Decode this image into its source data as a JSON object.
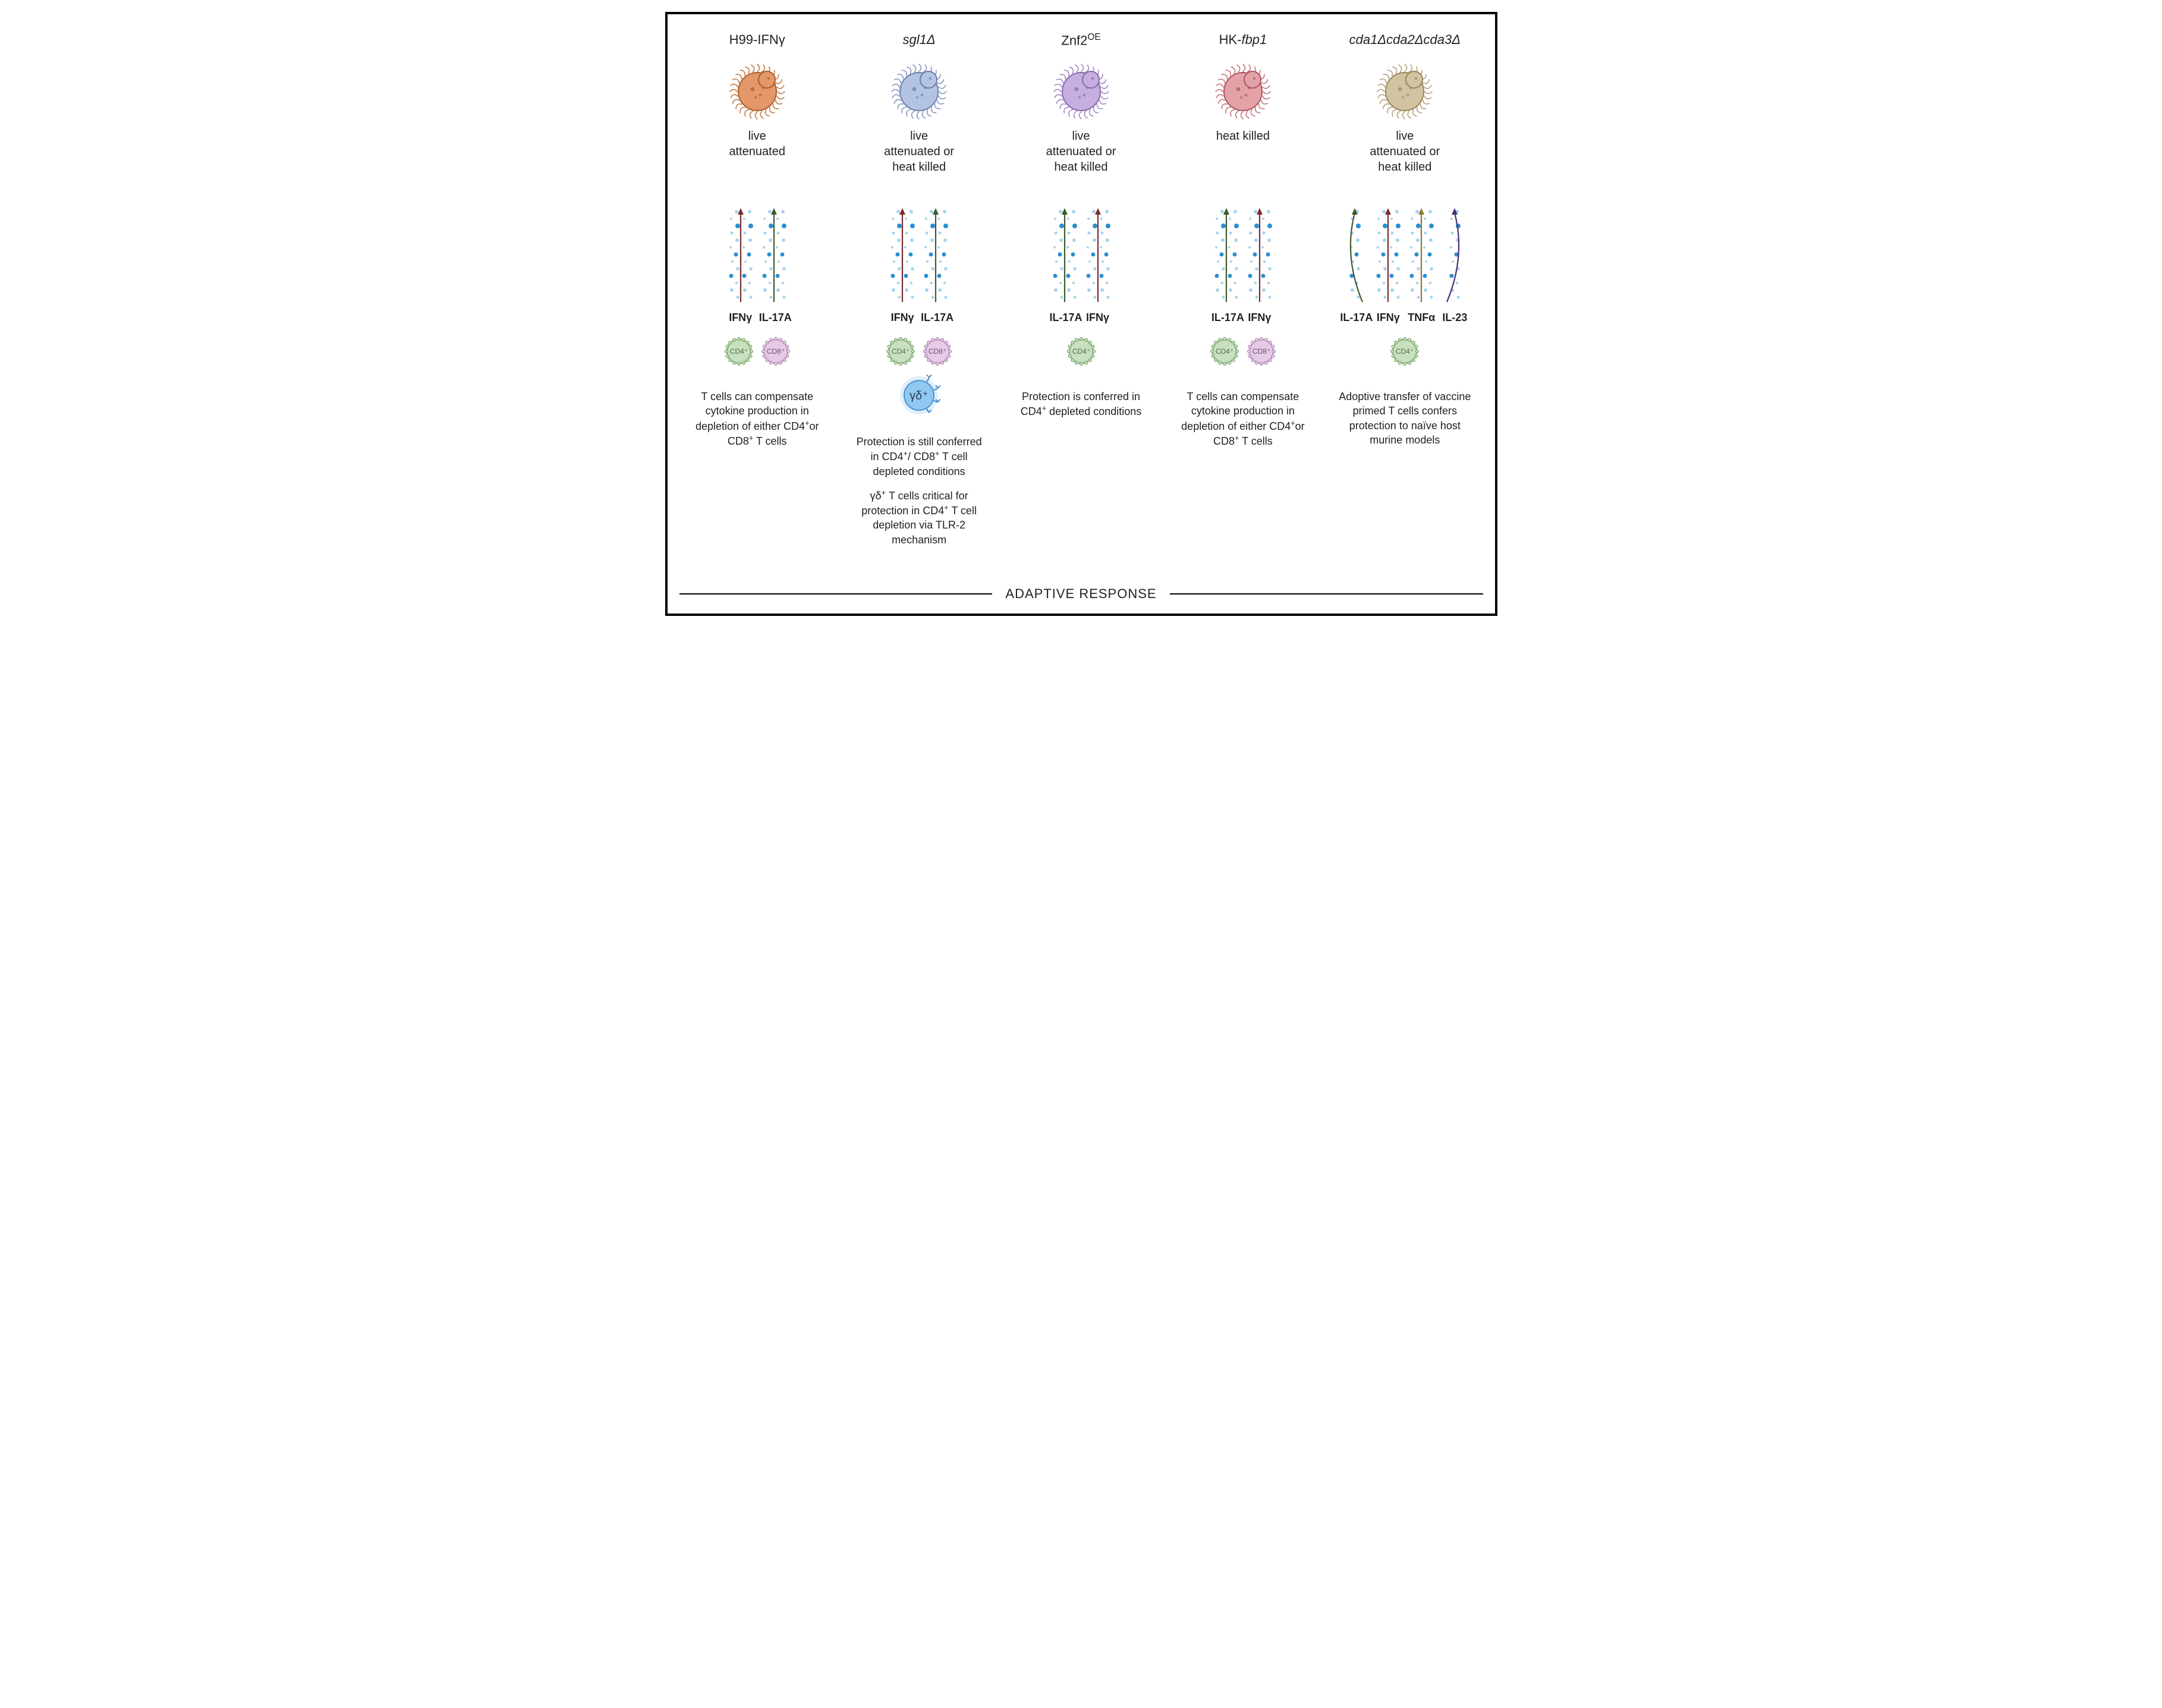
{
  "figure": {
    "type": "infographic",
    "border_color": "#000000",
    "background_color": "#ffffff",
    "text_color": "#212121",
    "footer_label": "ADAPTIVE RESPONSE",
    "footer_fontsize": 22,
    "title_fontsize": 22,
    "body_fontsize": 20,
    "cytokine_label_fontsize": 18,
    "cytokine_label_weight": "bold",
    "desc_fontsize": 18,
    "dot_colors": {
      "large": "#2a8fd0",
      "small": "#a6d3ee"
    },
    "pathogen_palette": {
      "orange": {
        "body": "#e3976a",
        "outline": "#a85f28",
        "cilia": "#c4783e"
      },
      "blue": {
        "body": "#b3c3e2",
        "outline": "#6b7ea8",
        "cilia": "#8696bf"
      },
      "purple": {
        "body": "#c6aee0",
        "outline": "#8768ad",
        "cilia": "#a285c5"
      },
      "red": {
        "body": "#e4a2a7",
        "outline": "#ab5560",
        "cilia": "#c4737d"
      },
      "tan": {
        "body": "#d2c3a3",
        "outline": "#97875f",
        "cilia": "#b2a079"
      }
    },
    "cell_palette": {
      "cd4": {
        "fill": "#c9e0c0",
        "stroke": "#6a9a5a",
        "label_color": "#4b6f3f"
      },
      "cd8": {
        "fill": "#e6cbe5",
        "stroke": "#a87bad",
        "label_color": "#6c4e76"
      },
      "gd": {
        "fill": "#8fc9f1",
        "stroke": "#4a8bc7",
        "glow": "#cfe8fa",
        "label_color": "#2a3d4d"
      }
    },
    "arrow_colors": {
      "dark_red": "#7c2a2a",
      "dark_green": "#3d5a2a",
      "olive": "#8a7a2c",
      "dark_purple": "#4a2e78"
    },
    "columns": [
      {
        "title_html": "H99-IFNγ",
        "pathogen_color": "orange",
        "attenuation": "live\nattenuated",
        "cytokines": [
          {
            "label": "IFNγ",
            "arrow_color": "dark_red",
            "curved": false
          },
          {
            "label": "IL-17A",
            "arrow_color": "dark_green",
            "curved": false
          }
        ],
        "cells": [
          {
            "type": "cd4",
            "label": "CD4⁺"
          },
          {
            "type": "cd8",
            "label": "CD8⁺"
          }
        ],
        "gd_cell": null,
        "description_html": "T cells can compensate cytokine production in depletion of either CD4<sup>+</sup>or CD8<sup>+</sup> T cells"
      },
      {
        "title_html": "<span class=\"italic\">sgl1Δ</span>",
        "pathogen_color": "blue",
        "attenuation": "live\nattenuated or\nheat killed",
        "cytokines": [
          {
            "label": "IFNγ",
            "arrow_color": "dark_red",
            "curved": false
          },
          {
            "label": "IL-17A",
            "arrow_color": "dark_green",
            "curved": false
          }
        ],
        "cells": [
          {
            "type": "cd4",
            "label": "CD4⁺"
          },
          {
            "type": "cd8",
            "label": "CD8⁺"
          }
        ],
        "gd_cell": {
          "type": "gd",
          "label": "γδ⁺"
        },
        "description_html": "Protection is still conferred in CD4<sup>+</sup>/ CD8<sup>+</sup> T cell depleted conditions<p>γδ<sup>+</sup> T cells critical for protection in CD4<sup>+</sup> T cell depletion via TLR-2 mechanism</p>"
      },
      {
        "title_html": "Znf2<sup>OE</sup>",
        "pathogen_color": "purple",
        "attenuation": "live\nattenuated or\nheat killed",
        "cytokines": [
          {
            "label": "IL-17A",
            "arrow_color": "dark_green",
            "curved": false
          },
          {
            "label": "IFNγ",
            "arrow_color": "dark_red",
            "curved": false
          }
        ],
        "cells": [
          {
            "type": "cd4",
            "label": "CD4⁺"
          }
        ],
        "gd_cell": null,
        "description_html": "Protection is conferred in CD4<sup>+</sup> depleted conditions"
      },
      {
        "title_html": "HK-<span class=\"italic\">fbp1</span>",
        "pathogen_color": "red",
        "attenuation": "heat killed",
        "cytokines": [
          {
            "label": "IL-17A",
            "arrow_color": "dark_green",
            "curved": false
          },
          {
            "label": "IFNγ",
            "arrow_color": "dark_red",
            "curved": false
          }
        ],
        "cells": [
          {
            "type": "cd4",
            "label": "CD4⁺"
          },
          {
            "type": "cd8",
            "label": "CD8⁺"
          }
        ],
        "gd_cell": null,
        "description_html": "T cells can compensate cytokine production in depletion of either CD4<sup>+</sup>or CD8<sup>+</sup> T cells"
      },
      {
        "title_html": "<span class=\"italic\">cda1Δcda2Δcda3Δ</span>",
        "pathogen_color": "tan",
        "attenuation": "live\nattenuated or\nheat killed",
        "cytokines": [
          {
            "label": "IL-17A",
            "arrow_color": "dark_green",
            "curved": true,
            "curve_dir": "left"
          },
          {
            "label": "IFNγ",
            "arrow_color": "dark_red",
            "curved": false
          },
          {
            "label": "TNFα",
            "arrow_color": "olive",
            "curved": false
          },
          {
            "label": "IL-23",
            "arrow_color": "dark_purple",
            "curved": true,
            "curve_dir": "right"
          }
        ],
        "cells": [
          {
            "type": "cd4",
            "label": "CD4⁺"
          }
        ],
        "gd_cell": null,
        "description_html": "Adoptive transfer of vaccine primed T cells confers protection to naïve host murine models"
      }
    ]
  }
}
